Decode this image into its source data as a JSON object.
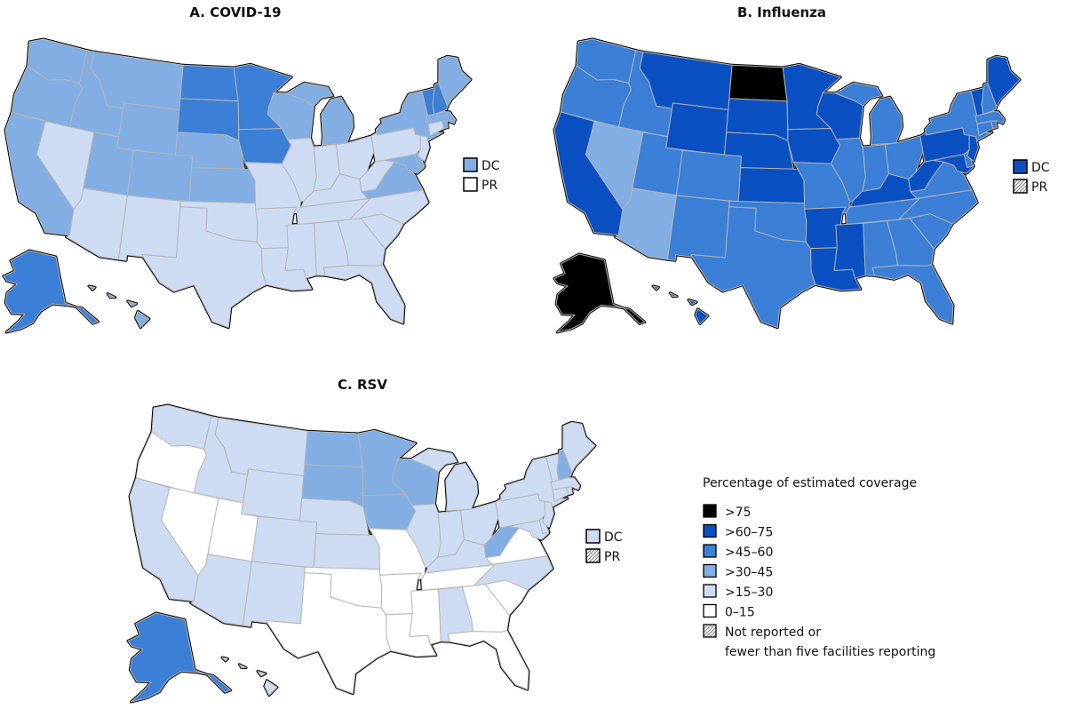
{
  "legend": {
    "title": "Percentage of estimated coverage",
    "items": [
      {
        "label": ">75",
        "color": "#000000"
      },
      {
        "label": ">60–75",
        "color": "#0a50c2"
      },
      {
        "label": ">45–60",
        "color": "#3b7fd6"
      },
      {
        "label": ">30–45",
        "color": "#82aee3"
      },
      {
        "label": ">15–30",
        "color": "#cddcf3"
      },
      {
        "label": "0–15",
        "color": "#ffffff"
      },
      {
        "label": "Not reported or",
        "label2": "fewer than five facilities reporting",
        "color": "hatch"
      }
    ]
  },
  "panels": [
    {
      "title": "A. COVID-19",
      "dc_label": "DC",
      "pr_label": "PR",
      "values": {
        "WA": ">30–45",
        "OR": ">30–45",
        "CA": ">30–45",
        "ID": ">30–45",
        "NV": ">15–30",
        "MT": ">30–45",
        "WY": ">30–45",
        "UT": ">30–45",
        "CO": ">30–45",
        "AZ": ">15–30",
        "NM": ">15–30",
        "ND": ">45–60",
        "SD": ">45–60",
        "NE": ">30–45",
        "KS": ">30–45",
        "OK": ">15–30",
        "TX": ">15–30",
        "MN": ">45–60",
        "IA": ">45–60",
        "MO": ">15–30",
        "AR": ">15–30",
        "LA": ">15–30",
        "WI": ">30–45",
        "IL": ">15–30",
        "MI": ">30–45",
        "IN": ">15–30",
        "OH": ">15–30",
        "KY": ">15–30",
        "TN": ">15–30",
        "MS": ">15–30",
        "AL": ">15–30",
        "GA": ">15–30",
        "FL": ">15–30",
        "SC": ">15–30",
        "NC": ">15–30",
        "VA": ">30–45",
        "WV": ">15–30",
        "MD": ">30–45",
        "DE": ">30–45",
        "PA": ">15–30",
        "NJ": ">15–30",
        "NY": ">30–45",
        "CT": ">15–30",
        "RI": ">30–45",
        "MA": ">30–45",
        "VT": ">45–60",
        "NH": ">45–60",
        "ME": ">30–45",
        "AK": ">45–60",
        "HI": ">30–45",
        "DC": ">30–45",
        "PR": "0–15"
      }
    },
    {
      "title": "B. Influenza",
      "dc_label": "DC",
      "pr_label": "PR",
      "values": {
        "WA": ">45–60",
        "OR": ">45–60",
        "CA": ">60–75",
        "ID": ">45–60",
        "NV": ">30–45",
        "MT": ">60–75",
        "WY": ">60–75",
        "UT": ">45–60",
        "CO": ">45–60",
        "AZ": ">30–45",
        "NM": ">45–60",
        "ND": ">75",
        "SD": ">60–75",
        "NE": ">60–75",
        "KS": ">60–75",
        "OK": ">45–60",
        "TX": ">45–60",
        "MN": ">60–75",
        "IA": ">60–75",
        "MO": ">45–60",
        "AR": ">60–75",
        "LA": ">60–75",
        "WI": ">60–75",
        "IL": ">45–60",
        "MI": ">45–60",
        "IN": ">45–60",
        "OH": ">45–60",
        "KY": ">60–75",
        "TN": ">45–60",
        "MS": ">60–75",
        "AL": ">45–60",
        "GA": ">45–60",
        "FL": ">45–60",
        "SC": ">45–60",
        "NC": ">45–60",
        "VA": ">45–60",
        "WV": ">60–75",
        "MD": ">60–75",
        "DE": ">45–60",
        "PA": ">60–75",
        "NJ": ">60–75",
        "NY": ">45–60",
        "CT": ">45–60",
        "RI": ">45–60",
        "MA": ">45–60",
        "VT": ">60–75",
        "NH": ">45–60",
        "ME": ">60–75",
        "AK": ">75",
        "HI": ">60–75",
        "DC": ">60–75",
        "PR": "NR"
      }
    },
    {
      "title": "C. RSV",
      "dc_label": "DC",
      "pr_label": "PR",
      "values": {
        "WA": ">15–30",
        "OR": "0–15",
        "CA": ">15–30",
        "ID": ">15–30",
        "NV": "0–15",
        "MT": ">15–30",
        "WY": ">15–30",
        "UT": "0–15",
        "CO": ">15–30",
        "AZ": ">15–30",
        "NM": ">15–30",
        "ND": ">30–45",
        "SD": ">30–45",
        "NE": ">15–30",
        "KS": ">15–30",
        "OK": "0–15",
        "TX": "0–15",
        "MN": ">30–45",
        "IA": ">30–45",
        "MO": "0–15",
        "AR": "0–15",
        "LA": "0–15",
        "WI": ">30–45",
        "IL": ">15–30",
        "MI": ">15–30",
        "IN": ">15–30",
        "OH": ">15–30",
        "KY": ">15–30",
        "TN": "0–15",
        "MS": "0–15",
        "AL": ">15–30",
        "GA": "0–15",
        "FL": "0–15",
        "SC": "0–15",
        "NC": ">15–30",
        "VA": "0–15",
        "WV": ">30–45",
        "MD": ">15–30",
        "DE": ">15–30",
        "PA": ">15–30",
        "NJ": ">15–30",
        "NY": ">15–30",
        "CT": ">15–30",
        "RI": ">15–30",
        "MA": ">15–30",
        "VT": ">15–30",
        "NH": ">30–45",
        "ME": ">15–30",
        "AK": ">45–60",
        "HI": ">15–30",
        "DC": ">15–30",
        "PR": "NR"
      }
    }
  ]
}
